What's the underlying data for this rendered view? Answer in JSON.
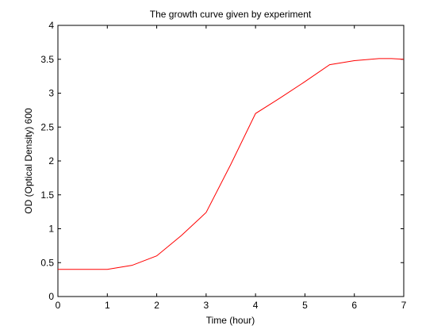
{
  "chart_data": {
    "type": "line",
    "title": "The growth curve given by experiment",
    "xlabel": "Time (hour)",
    "ylabel": "OD (Optical Density) 600",
    "xlim": [
      0,
      7
    ],
    "ylim": [
      0,
      4
    ],
    "x_ticks": [
      0,
      1,
      2,
      3,
      4,
      5,
      6,
      7
    ],
    "y_ticks": [
      0,
      0.5,
      1,
      1.5,
      2,
      2.5,
      3,
      3.5,
      4
    ],
    "x_tick_labels": [
      "0",
      "1",
      "2",
      "3",
      "4",
      "5",
      "6",
      "7"
    ],
    "y_tick_labels": [
      "0",
      "0.5",
      "1",
      "1.5",
      "2",
      "2.5",
      "3",
      "3.5",
      "4"
    ],
    "grid": false,
    "series": [
      {
        "color": "#ff0000",
        "x": [
          0,
          1,
          1.5,
          2,
          2.5,
          3,
          3.5,
          4,
          4.5,
          5,
          5.5,
          6,
          6.5,
          6.75,
          7
        ],
        "y": [
          0.4,
          0.4,
          0.46,
          0.6,
          0.9,
          1.24,
          1.95,
          2.7,
          2.93,
          3.17,
          3.42,
          3.48,
          3.51,
          3.51,
          3.5
        ]
      }
    ],
    "axis_color": "#000000",
    "background": "#ffffff"
  }
}
